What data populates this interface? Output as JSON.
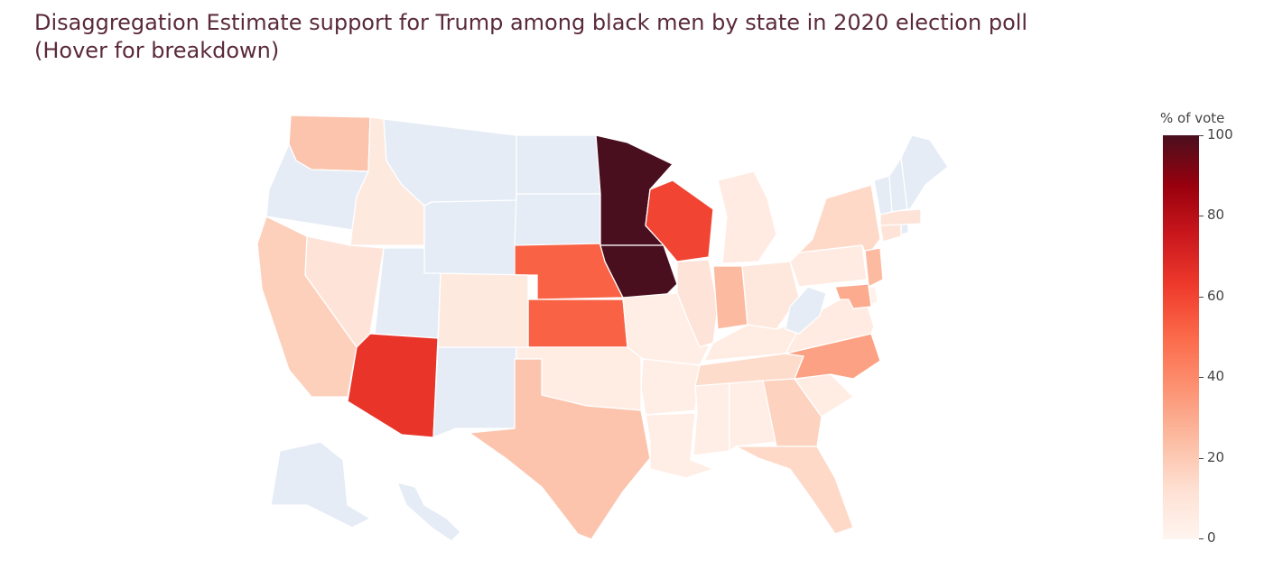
{
  "title_line1": "Disaggregation Estimate support for Trump among black men by state in 2020 election poll",
  "title_line2": "(Hover for breakdown)",
  "colorbar": {
    "title": "% of vote",
    "ticks": [
      "100",
      "80",
      "60",
      "40",
      "20",
      "0"
    ],
    "colorscale": [
      "#fff5f0",
      "#fee0d2",
      "#fcbba1",
      "#fc9272",
      "#fb6a4a",
      "#ef3b2c",
      "#cb181d",
      "#99000d",
      "#4a0f1e"
    ],
    "range": [
      0,
      100
    ]
  },
  "no_data_color": "#e5ecf6",
  "chart_data": {
    "type": "choropleth",
    "locationmode": "USA-states",
    "zmin": 0,
    "zmax": 100,
    "values": {
      "MN": 100,
      "IA": 100,
      "WI": 60,
      "AZ": 65,
      "NE": 52,
      "KS": 52,
      "NC": 33,
      "TX": 22,
      "WA": 22,
      "IN": 25,
      "CA": 18,
      "NY": 15,
      "NJ": 25,
      "MD": 30,
      "GA": 17,
      "FL": 15,
      "NV": 10,
      "ID": 7,
      "CO": 7,
      "IL": 10,
      "OH": 8,
      "TN": 14,
      "MI": 6,
      "KY": 5,
      "VA": 6,
      "PA": 6,
      "SC": 5,
      "OK": 5,
      "MO": 4,
      "AR": 4,
      "LA": 4,
      "MS": 4,
      "AL": 4,
      "CT": 10,
      "MA": 10,
      "DE": 2,
      "OR": null,
      "MT": null,
      "WY": null,
      "ND": null,
      "SD": null,
      "UT": null,
      "NM": null,
      "WV": null,
      "AK": null,
      "HI": null,
      "VT": null,
      "NH": null,
      "ME": null,
      "RI": null
    }
  }
}
